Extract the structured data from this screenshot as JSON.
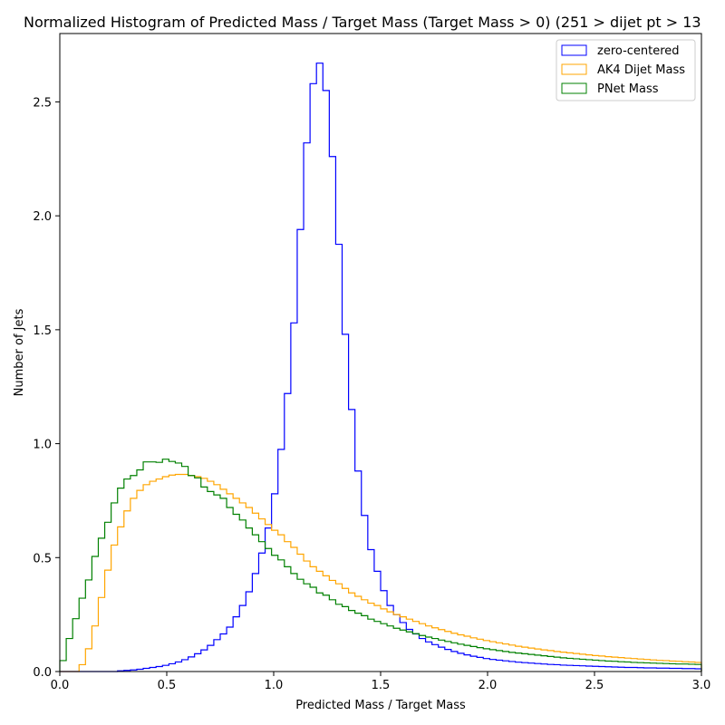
{
  "chart_data": {
    "type": "histogram-step",
    "title": "Normalized Histogram of Predicted Mass / Target Mass (Target Mass > 0) (251 > dijet pt > 13",
    "xlabel": "Predicted Mass / Target Mass",
    "ylabel": "Number of Jets",
    "xlim": [
      0,
      3.0
    ],
    "ylim": [
      0,
      2.8
    ],
    "x_ticks": [
      0.0,
      0.5,
      1.0,
      1.5,
      2.0,
      2.5,
      3.0
    ],
    "x_tick_labels": [
      "0.0",
      "0.5",
      "1.0",
      "1.5",
      "2.0",
      "2.5",
      "3.0"
    ],
    "y_ticks": [
      0.0,
      0.5,
      1.0,
      1.5,
      2.0,
      2.5
    ],
    "y_tick_labels": [
      "0.0",
      "0.5",
      "1.0",
      "1.5",
      "2.0",
      "2.5"
    ],
    "legend_position": "top-right",
    "grid": false,
    "bin_edges_start": 0.0,
    "bin_width": 0.03,
    "bin_count": 100,
    "series": [
      {
        "name": "zero-centered",
        "color": "#0000ff",
        "values": [
          0,
          0,
          0,
          0,
          0,
          0,
          0,
          0,
          0,
          0.003,
          0.005,
          0.007,
          0.01,
          0.014,
          0.018,
          0.022,
          0.027,
          0.034,
          0.042,
          0.052,
          0.064,
          0.078,
          0.095,
          0.115,
          0.14,
          0.165,
          0.195,
          0.24,
          0.29,
          0.35,
          0.43,
          0.52,
          0.63,
          0.78,
          0.975,
          1.22,
          1.53,
          1.94,
          2.32,
          2.58,
          2.67,
          2.55,
          2.26,
          1.875,
          1.48,
          1.15,
          0.88,
          0.685,
          0.535,
          0.44,
          0.355,
          0.29,
          0.25,
          0.215,
          0.185,
          0.165,
          0.145,
          0.13,
          0.118,
          0.107,
          0.097,
          0.088,
          0.08,
          0.073,
          0.067,
          0.062,
          0.057,
          0.053,
          0.05,
          0.047,
          0.044,
          0.041,
          0.039,
          0.037,
          0.035,
          0.033,
          0.031,
          0.03,
          0.028,
          0.027,
          0.026,
          0.025,
          0.024,
          0.023,
          0.022,
          0.021,
          0.02,
          0.019,
          0.018,
          0.018,
          0.017,
          0.016,
          0.016,
          0.015,
          0.015,
          0.014,
          0.014,
          0.013,
          0.013,
          0.012
        ]
      },
      {
        "name": "AK4 Dijet Mass",
        "color": "#ffa500",
        "values": [
          0,
          0,
          0,
          0.03,
          0.1,
          0.2,
          0.325,
          0.445,
          0.555,
          0.635,
          0.705,
          0.76,
          0.795,
          0.82,
          0.835,
          0.845,
          0.855,
          0.862,
          0.865,
          0.865,
          0.86,
          0.855,
          0.848,
          0.835,
          0.82,
          0.8,
          0.78,
          0.76,
          0.74,
          0.72,
          0.695,
          0.67,
          0.645,
          0.62,
          0.6,
          0.57,
          0.545,
          0.515,
          0.485,
          0.46,
          0.44,
          0.42,
          0.4,
          0.385,
          0.365,
          0.345,
          0.33,
          0.315,
          0.3,
          0.29,
          0.275,
          0.262,
          0.25,
          0.24,
          0.23,
          0.22,
          0.21,
          0.2,
          0.192,
          0.184,
          0.176,
          0.168,
          0.161,
          0.155,
          0.148,
          0.142,
          0.136,
          0.131,
          0.126,
          0.121,
          0.116,
          0.111,
          0.107,
          0.103,
          0.099,
          0.095,
          0.092,
          0.088,
          0.085,
          0.082,
          0.079,
          0.076,
          0.073,
          0.07,
          0.068,
          0.065,
          0.063,
          0.061,
          0.059,
          0.057,
          0.055,
          0.053,
          0.051,
          0.049,
          0.048,
          0.046,
          0.045,
          0.043,
          0.042,
          0.04
        ]
      },
      {
        "name": "PNet Mass",
        "color": "#008000",
        "values": [
          0.048,
          0.145,
          0.232,
          0.322,
          0.402,
          0.505,
          0.585,
          0.655,
          0.74,
          0.805,
          0.845,
          0.86,
          0.885,
          0.92,
          0.92,
          0.918,
          0.932,
          0.922,
          0.915,
          0.9,
          0.86,
          0.85,
          0.81,
          0.79,
          0.775,
          0.76,
          0.72,
          0.69,
          0.665,
          0.63,
          0.6,
          0.57,
          0.54,
          0.51,
          0.49,
          0.46,
          0.43,
          0.405,
          0.385,
          0.37,
          0.345,
          0.335,
          0.315,
          0.295,
          0.285,
          0.268,
          0.256,
          0.245,
          0.23,
          0.22,
          0.21,
          0.2,
          0.19,
          0.182,
          0.174,
          0.166,
          0.158,
          0.151,
          0.145,
          0.138,
          0.132,
          0.126,
          0.12,
          0.115,
          0.11,
          0.105,
          0.1,
          0.096,
          0.092,
          0.088,
          0.084,
          0.081,
          0.078,
          0.075,
          0.072,
          0.069,
          0.066,
          0.063,
          0.06,
          0.058,
          0.056,
          0.054,
          0.052,
          0.05,
          0.048,
          0.046,
          0.045,
          0.043,
          0.042,
          0.04,
          0.039,
          0.038,
          0.037,
          0.036,
          0.035,
          0.034,
          0.033,
          0.033,
          0.032,
          0.031
        ]
      }
    ]
  }
}
